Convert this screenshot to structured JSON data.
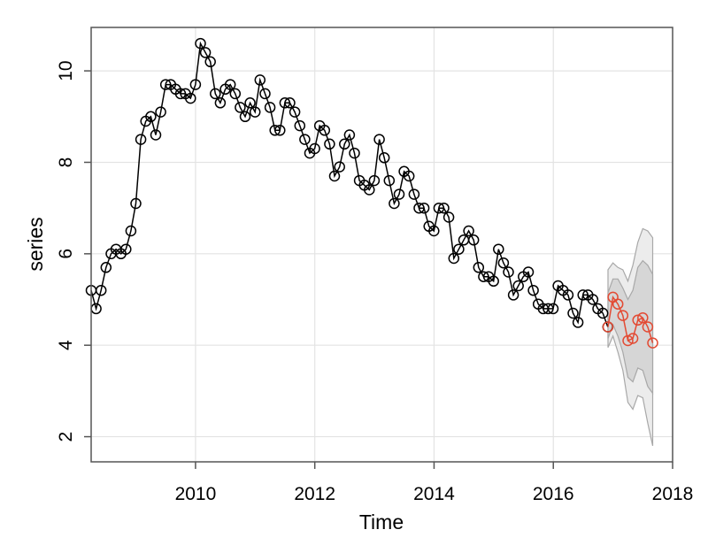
{
  "chart_data": {
    "type": "line",
    "title": "",
    "xlabel": "Time",
    "ylabel": "series",
    "xlim": [
      2008.25,
      2018.0
    ],
    "ylim": [
      1.45,
      10.95
    ],
    "x_ticks": [
      2010,
      2012,
      2014,
      2016,
      2018
    ],
    "x_tick_labels": [
      "2010",
      "2012",
      "2014",
      "2016",
      "2018"
    ],
    "y_ticks": [
      2,
      4,
      6,
      8,
      10
    ],
    "y_tick_labels": [
      "2",
      "4",
      "6",
      "8",
      "10"
    ],
    "grid": true,
    "series": [
      {
        "color": "#000000",
        "marker": "open-circle",
        "start": 2008.25,
        "step": 0.0833,
        "values": [
          5.2,
          4.8,
          5.2,
          5.7,
          6.0,
          6.1,
          6.0,
          6.1,
          6.5,
          7.1,
          8.5,
          8.9,
          9.0,
          8.6,
          9.1,
          9.7,
          9.7,
          9.6,
          9.5,
          9.5,
          9.4,
          9.7,
          10.6,
          10.4,
          10.2,
          9.5,
          9.3,
          9.6,
          9.7,
          9.5,
          9.2,
          9.0,
          9.3,
          9.1,
          9.8,
          9.5,
          9.2,
          8.7,
          8.7,
          9.3,
          9.3,
          9.1,
          8.8,
          8.5,
          8.2,
          8.3,
          8.8,
          8.7,
          8.4,
          7.7,
          7.9,
          8.4,
          8.6,
          8.2,
          7.6,
          7.5,
          7.4,
          7.6,
          8.5,
          8.1,
          7.6,
          7.1,
          7.3,
          7.8,
          7.7,
          7.3,
          7.0,
          7.0,
          6.6,
          6.5,
          7.0,
          7.0,
          6.8,
          5.9,
          6.1,
          6.3,
          6.5,
          6.3,
          5.7,
          5.5,
          5.5,
          5.4,
          6.1,
          5.8,
          5.6,
          5.1,
          5.3,
          5.5,
          5.6,
          5.2,
          4.9,
          4.8,
          4.8,
          4.8,
          5.3,
          5.2,
          5.1,
          4.7,
          4.5,
          5.1,
          5.1,
          5.0,
          4.8,
          4.7,
          4.4
        ]
      },
      {
        "color": "#e34a33",
        "marker": "open-circle",
        "start": 2016.9167,
        "step": 0.0833,
        "values": [
          4.4,
          5.05,
          4.9,
          4.65,
          4.1,
          4.15,
          4.55,
          4.6,
          4.4,
          4.05
        ]
      }
    ],
    "intervals": [
      {
        "level": "95",
        "fill": "#ececec",
        "x": [
          2016.9167,
          2017.0,
          2017.0833,
          2017.1667,
          2017.25,
          2017.3333,
          2017.4167,
          2017.5,
          2017.5833,
          2017.6667
        ],
        "lower": [
          3.95,
          4.2,
          3.85,
          3.45,
          2.75,
          2.6,
          2.9,
          2.85,
          2.3,
          1.8
        ],
        "upper": [
          5.65,
          5.8,
          5.7,
          5.65,
          5.4,
          5.75,
          6.25,
          6.55,
          6.5,
          6.35
        ]
      },
      {
        "level": "80",
        "fill": "#d6d6d6",
        "x": [
          2016.9167,
          2017.0,
          2017.0833,
          2017.1667,
          2017.25,
          2017.3333,
          2017.4167,
          2017.5,
          2017.5833,
          2017.6667
        ],
        "lower": [
          4.15,
          4.45,
          4.2,
          3.85,
          3.3,
          3.2,
          3.5,
          3.45,
          3.1,
          2.95
        ],
        "upper": [
          5.15,
          5.45,
          5.45,
          5.25,
          5.0,
          5.2,
          5.7,
          5.85,
          5.75,
          5.55
        ]
      }
    ]
  }
}
